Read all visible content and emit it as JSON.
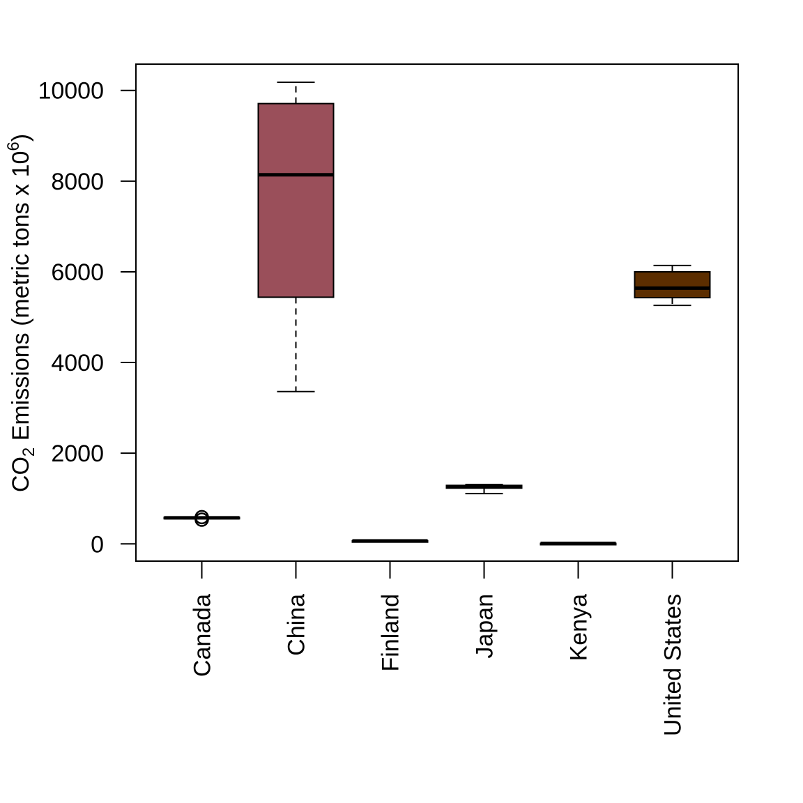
{
  "chart_data": {
    "type": "boxplot",
    "title": "",
    "xlabel": "",
    "ylabel": {
      "prefix": "CO",
      "sub": "2",
      "middle": " Emissions (metric tons x 10",
      "sup": "6",
      "suffix": ")"
    },
    "ylim": [
      -380,
      10580
    ],
    "yticks": [
      0,
      2000,
      4000,
      6000,
      8000,
      10000
    ],
    "grid": false,
    "categories": [
      "Canada",
      "China",
      "Finland",
      "Japan",
      "Kenya",
      "United States"
    ],
    "boxes": [
      {
        "name": "Canada",
        "whisker_low": 555,
        "q1": 565,
        "median": 575,
        "q3": 585,
        "whisker_high": 595,
        "outliers": [
          590,
          535
        ],
        "color": "#ffffff"
      },
      {
        "name": "China",
        "whisker_low": 3360,
        "q1": 5440,
        "median": 8140,
        "q3": 9710,
        "whisker_high": 10180,
        "outliers": [],
        "color": "#9a4f5a"
      },
      {
        "name": "Finland",
        "whisker_low": 55,
        "q1": 60,
        "median": 65,
        "q3": 70,
        "whisker_high": 75,
        "outliers": [],
        "color": "#ffffff"
      },
      {
        "name": "Japan",
        "whisker_low": 1110,
        "q1": 1230,
        "median": 1260,
        "q3": 1290,
        "whisker_high": 1310,
        "outliers": [],
        "color": "#ffffff"
      },
      {
        "name": "Kenya",
        "whisker_low": 5,
        "q1": 8,
        "median": 10,
        "q3": 12,
        "whisker_high": 15,
        "outliers": [],
        "color": "#ffffff"
      },
      {
        "name": "United States",
        "whisker_low": 5260,
        "q1": 5430,
        "median": 5640,
        "q3": 6000,
        "whisker_high": 6140,
        "outliers": [],
        "color": "#5c2e00"
      }
    ]
  }
}
